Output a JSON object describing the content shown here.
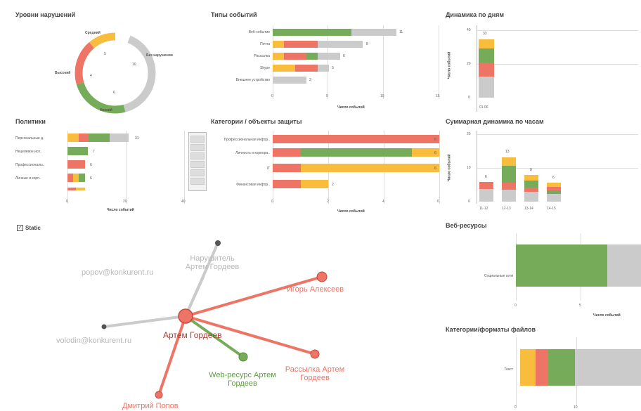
{
  "colors": {
    "green": "#76ab5a",
    "red": "#ee7466",
    "yellow": "#f8bd3d",
    "gray": "#cbcbcb",
    "redDark": "#e0584a"
  },
  "levels": {
    "title": "Уровни нарушений",
    "labels": [
      "Средний",
      "Без нарушения",
      "Низкий",
      "Высокий"
    ],
    "values": [
      "5",
      "10",
      "6",
      "4"
    ]
  },
  "types": {
    "title": "Типы событий",
    "axis_title": "Число событий",
    "ticks": [
      "0",
      "5",
      "10",
      "15"
    ],
    "rows": [
      {
        "label": "Веб-событие",
        "value": "11"
      },
      {
        "label": "Почта",
        "value": "8"
      },
      {
        "label": "Рассылка",
        "value": "6"
      },
      {
        "label": "Skype",
        "value": "5"
      },
      {
        "label": "Внешнее устройство",
        "value": "3"
      }
    ]
  },
  "daily": {
    "title": "Динамика по дням",
    "ylabel": "Число событий",
    "ticks": [
      "40",
      "20",
      "0"
    ],
    "value": "33",
    "xlabel": "01.06"
  },
  "policies": {
    "title": "Политики",
    "axis_title": "Число событий",
    "ticks": [
      "0",
      "20",
      "40"
    ],
    "rows": [
      {
        "label": "Персональные д.",
        "value": "31"
      },
      {
        "label": "Нецелевое исп..",
        "value": "7"
      },
      {
        "label": "Профессионалы..",
        "value": "6"
      },
      {
        "label": "Личные и корп..",
        "value": "6"
      }
    ]
  },
  "categories": {
    "title": "Категории / объекты защиты",
    "axis_title": "Число событий",
    "ticks": [
      "0",
      "2",
      "4",
      "6"
    ],
    "rows": [
      {
        "label": "Профессиональная инфор..",
        "value": "6"
      },
      {
        "label": "Личность и корпора..",
        "value": "6"
      },
      {
        "label": "IT",
        "value": "6"
      },
      {
        "label": "Финансовая инфор..",
        "value": "2"
      }
    ]
  },
  "hourly": {
    "title": "Суммарная динамика по часам",
    "ylabel": "Число событий",
    "ticks": [
      "20",
      "10",
      "0"
    ],
    "bars": [
      {
        "label": "11-12",
        "value": "6"
      },
      {
        "label": "12-13",
        "value": "13"
      },
      {
        "label": "13-14",
        "value": "8"
      },
      {
        "label": "14-15",
        "value": "6"
      }
    ]
  },
  "static": {
    "label": "Static"
  },
  "network": {
    "nodes": [
      {
        "label": "Артем Гордеев"
      },
      {
        "label": "Нарушитель Артем Гордеев"
      },
      {
        "label": "popov@konkurent.ru"
      },
      {
        "label": "volodin@konkurent.ru"
      },
      {
        "label": "Игорь Алексеев"
      },
      {
        "label": "Web-ресурс Артем Гордеев"
      },
      {
        "label": "Рассылка Артем Гордеев"
      },
      {
        "label": "Дмитрий Попов"
      }
    ]
  },
  "web": {
    "title": "Веб-ресурсы",
    "row_label": "Социальные сети",
    "ticks": [
      "0",
      "5"
    ],
    "axis_title": "Число событий"
  },
  "files": {
    "title": "Категории/форматы файлов",
    "row_label": "Текст",
    "ticks": [
      "0",
      "10"
    ]
  }
}
